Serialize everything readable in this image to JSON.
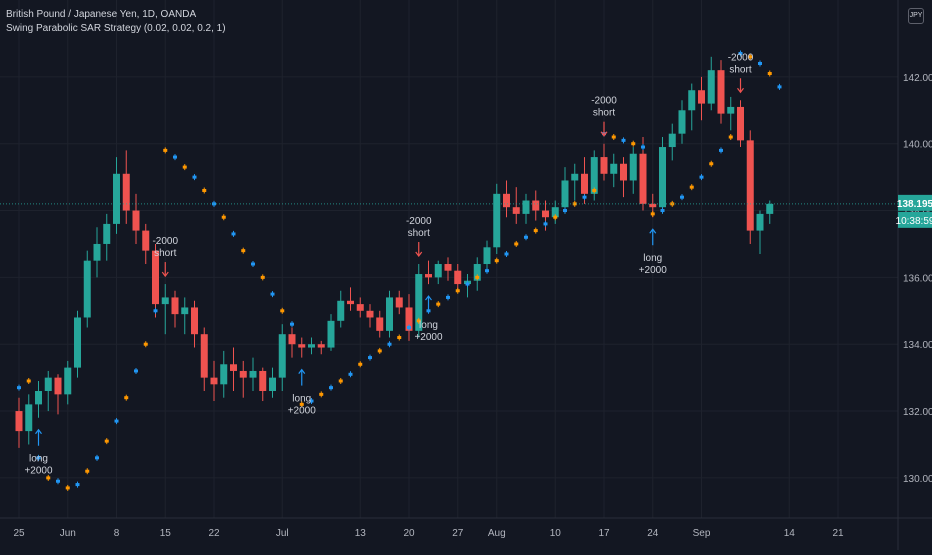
{
  "legend": {
    "symbol": "British Pound / Japanese Yen, 1D, OANDA",
    "indicator": "Swing Parabolic SAR Strategy (0.02, 0.02, 0.2, 1)"
  },
  "currency_badge": "JPY",
  "price_label": {
    "value": "138.195",
    "time": "10:38:59",
    "color": "#26a69a"
  },
  "colors": {
    "up": "#26a69a",
    "down": "#ef5350",
    "sar_blue": "#2196f3",
    "sar_orange": "#ff9800",
    "grid": "#1e222d",
    "text": "#b2b5be"
  },
  "chart_data": {
    "type": "candlestick",
    "symbol": "GBPJPY",
    "interval": "1D",
    "y_ticks": [
      130.0,
      132.0,
      134.0,
      136.0,
      138.0,
      140.0,
      142.0
    ],
    "ylim": [
      128.8,
      144.3
    ],
    "x_ticks": [
      {
        "label": "25",
        "i": 0
      },
      {
        "label": "Jun",
        "i": 5
      },
      {
        "label": "8",
        "i": 10
      },
      {
        "label": "15",
        "i": 15
      },
      {
        "label": "22",
        "i": 20
      },
      {
        "label": "Jul",
        "i": 27
      },
      {
        "label": "13",
        "i": 35
      },
      {
        "label": "20",
        "i": 40
      },
      {
        "label": "27",
        "i": 45
      },
      {
        "label": "Aug",
        "i": 49
      },
      {
        "label": "10",
        "i": 55
      },
      {
        "label": "17",
        "i": 60
      },
      {
        "label": "24",
        "i": 65
      },
      {
        "label": "Sep",
        "i": 70
      },
      {
        "label": "14",
        "i": 79
      },
      {
        "label": "21",
        "i": 84
      }
    ],
    "candles": [
      {
        "o": 132.0,
        "h": 132.4,
        "l": 130.9,
        "c": 131.4
      },
      {
        "o": 131.4,
        "h": 132.5,
        "l": 131.0,
        "c": 132.2
      },
      {
        "o": 132.2,
        "h": 132.9,
        "l": 131.8,
        "c": 132.6
      },
      {
        "o": 132.6,
        "h": 133.2,
        "l": 132.0,
        "c": 133.0
      },
      {
        "o": 133.0,
        "h": 133.1,
        "l": 131.9,
        "c": 132.5
      },
      {
        "o": 132.5,
        "h": 133.5,
        "l": 132.2,
        "c": 133.3
      },
      {
        "o": 133.3,
        "h": 135.0,
        "l": 133.0,
        "c": 134.8
      },
      {
        "o": 134.8,
        "h": 136.8,
        "l": 134.5,
        "c": 136.5
      },
      {
        "o": 136.5,
        "h": 137.5,
        "l": 136.0,
        "c": 137.0
      },
      {
        "o": 137.0,
        "h": 137.9,
        "l": 136.5,
        "c": 137.6
      },
      {
        "o": 137.6,
        "h": 139.6,
        "l": 137.3,
        "c": 139.1
      },
      {
        "o": 139.1,
        "h": 139.8,
        "l": 137.6,
        "c": 138.0
      },
      {
        "o": 138.0,
        "h": 138.5,
        "l": 137.0,
        "c": 137.4
      },
      {
        "o": 137.4,
        "h": 137.6,
        "l": 136.4,
        "c": 136.8
      },
      {
        "o": 136.8,
        "h": 137.0,
        "l": 134.8,
        "c": 135.2
      },
      {
        "o": 135.2,
        "h": 135.8,
        "l": 134.3,
        "c": 135.4
      },
      {
        "o": 135.4,
        "h": 135.6,
        "l": 134.5,
        "c": 134.9
      },
      {
        "o": 134.9,
        "h": 135.4,
        "l": 134.3,
        "c": 135.1
      },
      {
        "o": 135.1,
        "h": 135.3,
        "l": 133.9,
        "c": 134.3
      },
      {
        "o": 134.3,
        "h": 134.5,
        "l": 132.6,
        "c": 133.0
      },
      {
        "o": 133.0,
        "h": 133.5,
        "l": 132.3,
        "c": 132.8
      },
      {
        "o": 132.8,
        "h": 133.8,
        "l": 132.4,
        "c": 133.4
      },
      {
        "o": 133.4,
        "h": 133.9,
        "l": 132.6,
        "c": 133.2
      },
      {
        "o": 133.2,
        "h": 133.5,
        "l": 132.4,
        "c": 133.0
      },
      {
        "o": 133.0,
        "h": 133.6,
        "l": 132.6,
        "c": 133.2
      },
      {
        "o": 133.2,
        "h": 133.3,
        "l": 132.3,
        "c": 132.6
      },
      {
        "o": 132.6,
        "h": 133.3,
        "l": 132.4,
        "c": 133.0
      },
      {
        "o": 133.0,
        "h": 134.6,
        "l": 132.6,
        "c": 134.3
      },
      {
        "o": 134.3,
        "h": 134.5,
        "l": 133.6,
        "c": 134.0
      },
      {
        "o": 134.0,
        "h": 134.2,
        "l": 133.6,
        "c": 133.9
      },
      {
        "o": 133.9,
        "h": 134.2,
        "l": 133.7,
        "c": 134.0
      },
      {
        "o": 134.0,
        "h": 134.1,
        "l": 133.7,
        "c": 133.9
      },
      {
        "o": 133.9,
        "h": 134.9,
        "l": 133.8,
        "c": 134.7
      },
      {
        "o": 134.7,
        "h": 135.6,
        "l": 134.5,
        "c": 135.3
      },
      {
        "o": 135.3,
        "h": 135.7,
        "l": 135.0,
        "c": 135.2
      },
      {
        "o": 135.2,
        "h": 135.4,
        "l": 134.8,
        "c": 135.0
      },
      {
        "o": 135.0,
        "h": 135.2,
        "l": 134.5,
        "c": 134.8
      },
      {
        "o": 134.8,
        "h": 135.0,
        "l": 134.2,
        "c": 134.4
      },
      {
        "o": 134.4,
        "h": 135.6,
        "l": 134.2,
        "c": 135.4
      },
      {
        "o": 135.4,
        "h": 135.6,
        "l": 134.9,
        "c": 135.1
      },
      {
        "o": 135.1,
        "h": 135.5,
        "l": 134.1,
        "c": 134.4
      },
      {
        "o": 134.4,
        "h": 136.4,
        "l": 134.2,
        "c": 136.1
      },
      {
        "o": 136.1,
        "h": 136.5,
        "l": 135.8,
        "c": 136.0
      },
      {
        "o": 136.0,
        "h": 136.5,
        "l": 135.8,
        "c": 136.4
      },
      {
        "o": 136.4,
        "h": 136.6,
        "l": 135.9,
        "c": 136.2
      },
      {
        "o": 136.2,
        "h": 136.4,
        "l": 135.6,
        "c": 135.8
      },
      {
        "o": 135.8,
        "h": 136.1,
        "l": 135.4,
        "c": 135.9
      },
      {
        "o": 135.9,
        "h": 136.6,
        "l": 135.6,
        "c": 136.4
      },
      {
        "o": 136.4,
        "h": 137.1,
        "l": 136.2,
        "c": 136.9
      },
      {
        "o": 136.9,
        "h": 138.8,
        "l": 136.7,
        "c": 138.5
      },
      {
        "o": 138.5,
        "h": 138.9,
        "l": 137.8,
        "c": 138.1
      },
      {
        "o": 138.1,
        "h": 138.7,
        "l": 137.6,
        "c": 137.9
      },
      {
        "o": 137.9,
        "h": 138.5,
        "l": 137.6,
        "c": 138.3
      },
      {
        "o": 138.3,
        "h": 138.6,
        "l": 137.7,
        "c": 138.0
      },
      {
        "o": 138.0,
        "h": 138.3,
        "l": 137.4,
        "c": 137.8
      },
      {
        "o": 137.8,
        "h": 138.3,
        "l": 137.6,
        "c": 138.1
      },
      {
        "o": 138.1,
        "h": 139.3,
        "l": 137.9,
        "c": 138.9
      },
      {
        "o": 138.9,
        "h": 139.4,
        "l": 138.3,
        "c": 139.1
      },
      {
        "o": 139.1,
        "h": 139.6,
        "l": 138.2,
        "c": 138.5
      },
      {
        "o": 138.5,
        "h": 139.8,
        "l": 138.3,
        "c": 139.6
      },
      {
        "o": 139.6,
        "h": 140.0,
        "l": 138.9,
        "c": 139.1
      },
      {
        "o": 139.1,
        "h": 139.7,
        "l": 138.7,
        "c": 139.4
      },
      {
        "o": 139.4,
        "h": 139.6,
        "l": 138.4,
        "c": 138.9
      },
      {
        "o": 138.9,
        "h": 139.9,
        "l": 138.5,
        "c": 139.7
      },
      {
        "o": 139.7,
        "h": 140.2,
        "l": 138.0,
        "c": 138.2
      },
      {
        "o": 138.2,
        "h": 138.5,
        "l": 137.8,
        "c": 138.1
      },
      {
        "o": 138.1,
        "h": 140.2,
        "l": 137.9,
        "c": 139.9
      },
      {
        "o": 139.9,
        "h": 140.6,
        "l": 139.5,
        "c": 140.3
      },
      {
        "o": 140.3,
        "h": 141.3,
        "l": 140.0,
        "c": 141.0
      },
      {
        "o": 141.0,
        "h": 141.8,
        "l": 140.4,
        "c": 141.6
      },
      {
        "o": 141.6,
        "h": 142.0,
        "l": 140.7,
        "c": 141.2
      },
      {
        "o": 141.2,
        "h": 142.6,
        "l": 141.0,
        "c": 142.2
      },
      {
        "o": 142.2,
        "h": 142.5,
        "l": 140.6,
        "c": 140.9
      },
      {
        "o": 140.9,
        "h": 141.4,
        "l": 140.4,
        "c": 141.1
      },
      {
        "o": 141.1,
        "h": 141.3,
        "l": 139.9,
        "c": 140.1
      },
      {
        "o": 140.1,
        "h": 140.4,
        "l": 137.0,
        "c": 137.4
      },
      {
        "o": 137.4,
        "h": 138.0,
        "l": 136.7,
        "c": 137.9
      },
      {
        "o": 137.9,
        "h": 138.3,
        "l": 137.6,
        "c": 138.2
      }
    ],
    "sar": [
      {
        "i": 0,
        "v": 132.7,
        "s": "above"
      },
      {
        "i": 1,
        "v": 132.9,
        "s": "above"
      },
      {
        "i": 2,
        "v": 130.6,
        "s": "below"
      },
      {
        "i": 3,
        "v": 130.0,
        "s": "below"
      },
      {
        "i": 4,
        "v": 129.9,
        "s": "below"
      },
      {
        "i": 5,
        "v": 129.7,
        "s": "below"
      },
      {
        "i": 6,
        "v": 129.8,
        "s": "below"
      },
      {
        "i": 7,
        "v": 130.2,
        "s": "below"
      },
      {
        "i": 8,
        "v": 130.6,
        "s": "below"
      },
      {
        "i": 9,
        "v": 131.1,
        "s": "below"
      },
      {
        "i": 10,
        "v": 131.7,
        "s": "below"
      },
      {
        "i": 11,
        "v": 132.4,
        "s": "below"
      },
      {
        "i": 12,
        "v": 133.2,
        "s": "below"
      },
      {
        "i": 13,
        "v": 134.0,
        "s": "below"
      },
      {
        "i": 14,
        "v": 135.0,
        "s": "below"
      },
      {
        "i": 15,
        "v": 139.8,
        "s": "above"
      },
      {
        "i": 16,
        "v": 139.6,
        "s": "above"
      },
      {
        "i": 17,
        "v": 139.3,
        "s": "above"
      },
      {
        "i": 18,
        "v": 139.0,
        "s": "above"
      },
      {
        "i": 19,
        "v": 138.6,
        "s": "above"
      },
      {
        "i": 20,
        "v": 138.2,
        "s": "above"
      },
      {
        "i": 21,
        "v": 137.8,
        "s": "above"
      },
      {
        "i": 22,
        "v": 137.3,
        "s": "above"
      },
      {
        "i": 23,
        "v": 136.8,
        "s": "above"
      },
      {
        "i": 24,
        "v": 136.4,
        "s": "above"
      },
      {
        "i": 25,
        "v": 136.0,
        "s": "above"
      },
      {
        "i": 26,
        "v": 135.5,
        "s": "above"
      },
      {
        "i": 27,
        "v": 135.0,
        "s": "above"
      },
      {
        "i": 28,
        "v": 134.6,
        "s": "above"
      },
      {
        "i": 29,
        "v": 132.2,
        "s": "below"
      },
      {
        "i": 30,
        "v": 132.3,
        "s": "below"
      },
      {
        "i": 31,
        "v": 132.5,
        "s": "below"
      },
      {
        "i": 32,
        "v": 132.7,
        "s": "below"
      },
      {
        "i": 33,
        "v": 132.9,
        "s": "below"
      },
      {
        "i": 34,
        "v": 133.1,
        "s": "below"
      },
      {
        "i": 35,
        "v": 133.4,
        "s": "below"
      },
      {
        "i": 36,
        "v": 133.6,
        "s": "below"
      },
      {
        "i": 37,
        "v": 133.8,
        "s": "below"
      },
      {
        "i": 38,
        "v": 134.0,
        "s": "below"
      },
      {
        "i": 39,
        "v": 134.2,
        "s": "below"
      },
      {
        "i": 40,
        "v": 134.5,
        "s": "below"
      },
      {
        "i": 41,
        "v": 134.7,
        "s": "below"
      },
      {
        "i": 42,
        "v": 135.0,
        "s": "below"
      },
      {
        "i": 43,
        "v": 135.2,
        "s": "below"
      },
      {
        "i": 44,
        "v": 135.4,
        "s": "below"
      },
      {
        "i": 45,
        "v": 135.6,
        "s": "below"
      },
      {
        "i": 46,
        "v": 135.8,
        "s": "below"
      },
      {
        "i": 47,
        "v": 136.0,
        "s": "below"
      },
      {
        "i": 48,
        "v": 136.2,
        "s": "below"
      },
      {
        "i": 49,
        "v": 136.5,
        "s": "below"
      },
      {
        "i": 50,
        "v": 136.7,
        "s": "below"
      },
      {
        "i": 51,
        "v": 137.0,
        "s": "below"
      },
      {
        "i": 52,
        "v": 137.2,
        "s": "below"
      },
      {
        "i": 53,
        "v": 137.4,
        "s": "below"
      },
      {
        "i": 54,
        "v": 137.6,
        "s": "below"
      },
      {
        "i": 55,
        "v": 137.8,
        "s": "below"
      },
      {
        "i": 56,
        "v": 138.0,
        "s": "below"
      },
      {
        "i": 57,
        "v": 138.2,
        "s": "below"
      },
      {
        "i": 58,
        "v": 138.4,
        "s": "below"
      },
      {
        "i": 59,
        "v": 138.6,
        "s": "below"
      },
      {
        "i": 60,
        "v": 140.3,
        "s": "above"
      },
      {
        "i": 61,
        "v": 140.2,
        "s": "above"
      },
      {
        "i": 62,
        "v": 140.1,
        "s": "above"
      },
      {
        "i": 63,
        "v": 140.0,
        "s": "above"
      },
      {
        "i": 64,
        "v": 139.9,
        "s": "above"
      },
      {
        "i": 65,
        "v": 137.9,
        "s": "below"
      },
      {
        "i": 66,
        "v": 138.0,
        "s": "below"
      },
      {
        "i": 67,
        "v": 138.2,
        "s": "below"
      },
      {
        "i": 68,
        "v": 138.4,
        "s": "below"
      },
      {
        "i": 69,
        "v": 138.7,
        "s": "below"
      },
      {
        "i": 70,
        "v": 139.0,
        "s": "below"
      },
      {
        "i": 71,
        "v": 139.4,
        "s": "below"
      },
      {
        "i": 72,
        "v": 139.8,
        "s": "below"
      },
      {
        "i": 73,
        "v": 140.2,
        "s": "below"
      },
      {
        "i": 74,
        "v": 142.7,
        "s": "above"
      },
      {
        "i": 75,
        "v": 142.6,
        "s": "above"
      },
      {
        "i": 76,
        "v": 142.4,
        "s": "above"
      },
      {
        "i": 77,
        "v": 142.1,
        "s": "above"
      },
      {
        "i": 78,
        "v": 141.7,
        "s": "above"
      }
    ],
    "signals": [
      {
        "i": 2,
        "type": "long",
        "label_top": "long",
        "label_bottom": "+2000"
      },
      {
        "i": 15,
        "type": "short",
        "label_top": "-2000",
        "label_bottom": "short"
      },
      {
        "i": 29,
        "type": "long",
        "label_top": "long",
        "label_bottom": "+2000"
      },
      {
        "i": 41,
        "type": "short",
        "label_top": "-2000",
        "label_bottom": "short"
      },
      {
        "i": 42,
        "type": "long",
        "label_top": "long",
        "label_bottom": "+2000"
      },
      {
        "i": 60,
        "type": "short",
        "label_top": "-2000",
        "label_bottom": "short"
      },
      {
        "i": 65,
        "type": "long",
        "label_top": "long",
        "label_bottom": "+2000"
      },
      {
        "i": 74,
        "type": "short",
        "label_top": "-2000",
        "label_bottom": "short"
      }
    ]
  }
}
